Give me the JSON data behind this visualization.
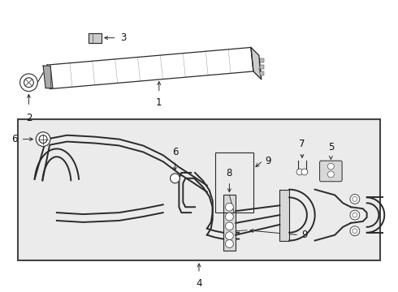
{
  "bg": "#ffffff",
  "fw": 4.9,
  "fh": 3.6,
  "dpi": 100,
  "lc": "#2a2a2a",
  "box_bg": "#ebebeb",
  "gray_cap": "#b0b0b0",
  "gray_mid": "#d0d0d0"
}
